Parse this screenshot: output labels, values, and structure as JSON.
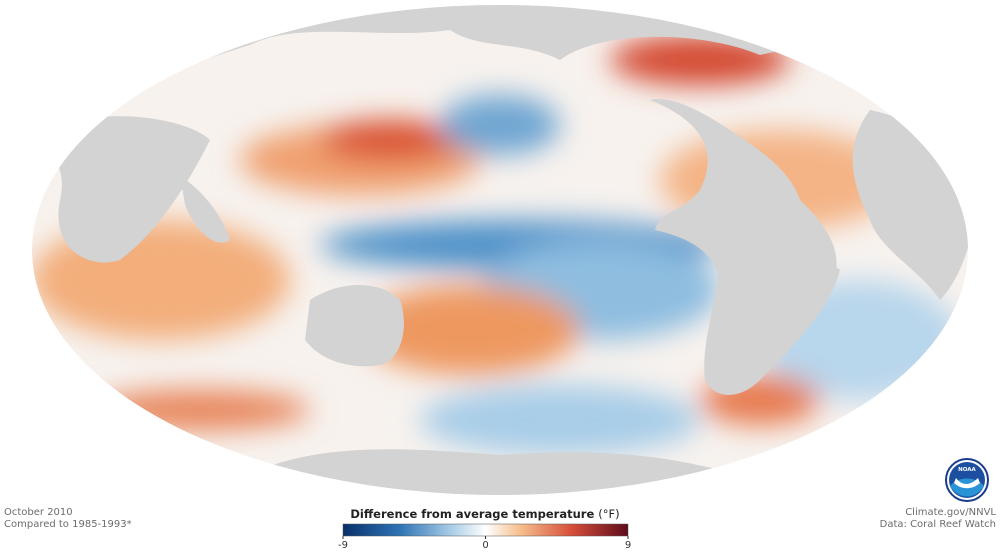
{
  "map": {
    "date": "October 2010",
    "baseline": "Compared to 1985-1993*",
    "credit": "Climate.gov/NNVL",
    "source": "Data: Coral Reef Watch",
    "logo": "NOAA"
  },
  "colorbar": {
    "title": "Difference from average temperature",
    "unit": "(°F)",
    "lim": [
      -9,
      9
    ],
    "ticks": [
      -9,
      0,
      9
    ]
  }
}
